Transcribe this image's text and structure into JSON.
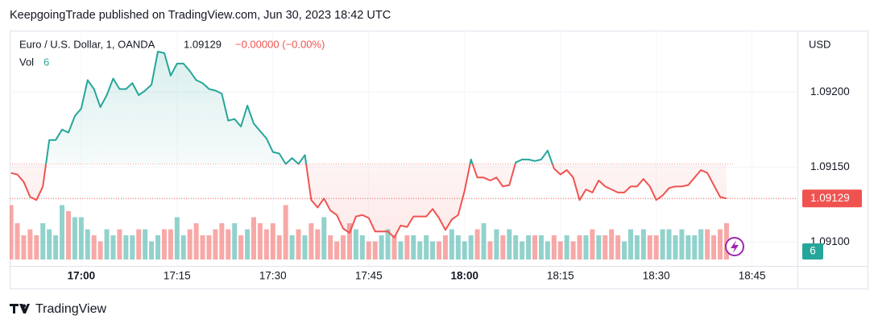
{
  "header": {
    "published": "KeepgoingTrade published on TradingView.com, Jun 30, 2023 18:42 UTC"
  },
  "footer": {
    "brand": "TradingView"
  },
  "chart_data": {
    "type": "baseline",
    "currency": "USD",
    "change_label": "−0.00000 (−0.00%)",
    "up_color": "#26a69a",
    "down_color": "#ef5350",
    "baseline": 1.09152,
    "grid": true,
    "x": [
      1009,
      1010,
      1011,
      1012,
      1013,
      1014,
      1015,
      1016,
      1017,
      1018,
      1019,
      1020,
      1021,
      1022,
      1023,
      1024,
      1025,
      1026,
      1027,
      1028,
      1029,
      1030,
      1031,
      1032,
      1033,
      1034,
      1035,
      1036,
      1037,
      1038,
      1039,
      1040,
      1041,
      1042,
      1043,
      1044,
      1045,
      1046,
      1047,
      1048,
      1049,
      1050,
      1051,
      1052,
      1053,
      1054,
      1055,
      1056,
      1057,
      1058,
      1059,
      1060,
      1061,
      1062,
      1063,
      1064,
      1065,
      1066,
      1067,
      1068,
      1069,
      1070,
      1071,
      1072,
      1073,
      1074,
      1075,
      1076,
      1077,
      1078,
      1079,
      1080,
      1081,
      1082,
      1083,
      1084,
      1085,
      1086,
      1087,
      1088,
      1089,
      1090,
      1091,
      1092,
      1093,
      1094,
      1095,
      1096,
      1097,
      1098,
      1099,
      1100,
      1101,
      1102,
      1103,
      1104,
      1105,
      1106,
      1107,
      1108,
      1109,
      1110,
      1111,
      1112,
      1113,
      1114,
      1115,
      1116,
      1117,
      1118,
      1119,
      1120,
      1121
    ],
    "series": [
      {
        "name": "Euro / U.S. Dollar, 1, OANDA",
        "values": [
          1.09146,
          1.09145,
          1.0914,
          1.0913,
          1.09128,
          1.09137,
          1.09168,
          1.09168,
          1.09175,
          1.09173,
          1.09184,
          1.09189,
          1.09208,
          1.09202,
          1.0919,
          1.09198,
          1.09209,
          1.09202,
          1.09202,
          1.09206,
          1.09198,
          1.09201,
          1.09205,
          1.09227,
          1.09226,
          1.09211,
          1.09219,
          1.09219,
          1.09214,
          1.09208,
          1.09206,
          1.09202,
          1.09201,
          1.09199,
          1.09181,
          1.09182,
          1.09177,
          1.09191,
          1.09179,
          1.09174,
          1.09169,
          1.0916,
          1.09159,
          1.09152,
          1.09156,
          1.09152,
          1.09158,
          1.09128,
          1.09123,
          1.09129,
          1.09121,
          1.09118,
          1.09109,
          1.09106,
          1.09117,
          1.09118,
          1.09116,
          1.09107,
          1.09107,
          1.09107,
          1.09103,
          1.09111,
          1.0911,
          1.09117,
          1.09117,
          1.09117,
          1.09122,
          1.09116,
          1.09108,
          1.09115,
          1.09118,
          1.09134,
          1.09155,
          1.09143,
          1.09143,
          1.09141,
          1.09143,
          1.09137,
          1.09138,
          1.09153,
          1.09155,
          1.09155,
          1.09154,
          1.09155,
          1.09161,
          1.09149,
          1.09145,
          1.09148,
          1.09143,
          1.09128,
          1.09135,
          1.09133,
          1.09141,
          1.09137,
          1.09135,
          1.09133,
          1.09133,
          1.09137,
          1.09137,
          1.09142,
          1.09137,
          1.09128,
          1.09131,
          1.09136,
          1.09137,
          1.09137,
          1.09138,
          1.09143,
          1.09148,
          1.09146,
          1.09138,
          1.0913,
          1.09129
        ]
      },
      {
        "name": "Vol",
        "values": [
          9,
          6,
          4,
          5,
          4,
          6,
          5,
          4,
          9,
          8,
          7,
          7,
          5,
          4,
          3,
          5,
          4,
          5,
          4,
          4,
          5,
          5,
          3,
          4,
          5,
          5,
          7,
          4,
          5,
          6,
          4,
          4,
          5,
          6,
          5,
          6,
          4,
          5,
          7,
          6,
          5,
          6,
          4,
          9,
          4,
          5,
          4,
          6,
          5,
          7,
          4,
          3,
          4,
          6,
          5,
          4,
          3,
          3,
          4,
          5,
          4,
          3,
          4,
          4,
          3,
          4,
          3,
          3,
          4,
          5,
          4,
          3,
          4,
          5,
          6,
          3,
          5,
          4,
          5,
          4,
          3,
          4,
          4,
          4,
          3,
          4,
          3,
          4,
          3,
          4,
          4,
          5,
          4,
          4,
          5,
          4,
          3,
          5,
          4,
          5,
          4,
          4,
          5,
          5,
          4,
          5,
          4,
          4,
          5,
          5,
          4,
          5,
          6
        ]
      }
    ],
    "xlim": [
      1008.8,
      1132.1
    ],
    "xticks": [
      {
        "value": 1020,
        "label": "17:00",
        "bold": true
      },
      {
        "value": 1035,
        "label": "17:15"
      },
      {
        "value": 1050,
        "label": "17:30"
      },
      {
        "value": 1065,
        "label": "17:45"
      },
      {
        "value": 1080,
        "label": "18:00",
        "bold": true
      },
      {
        "value": 1095,
        "label": "18:15"
      },
      {
        "value": 1110,
        "label": "18:30"
      },
      {
        "value": 1125,
        "label": "18:45"
      }
    ],
    "ylim": [
      1.09084,
      1.09241
    ],
    "yticks": [
      {
        "value": 1.091,
        "label": "1.09100"
      },
      {
        "value": 1.0915,
        "label": "1.09150"
      },
      {
        "value": 1.092,
        "label": "1.09200"
      }
    ]
  }
}
